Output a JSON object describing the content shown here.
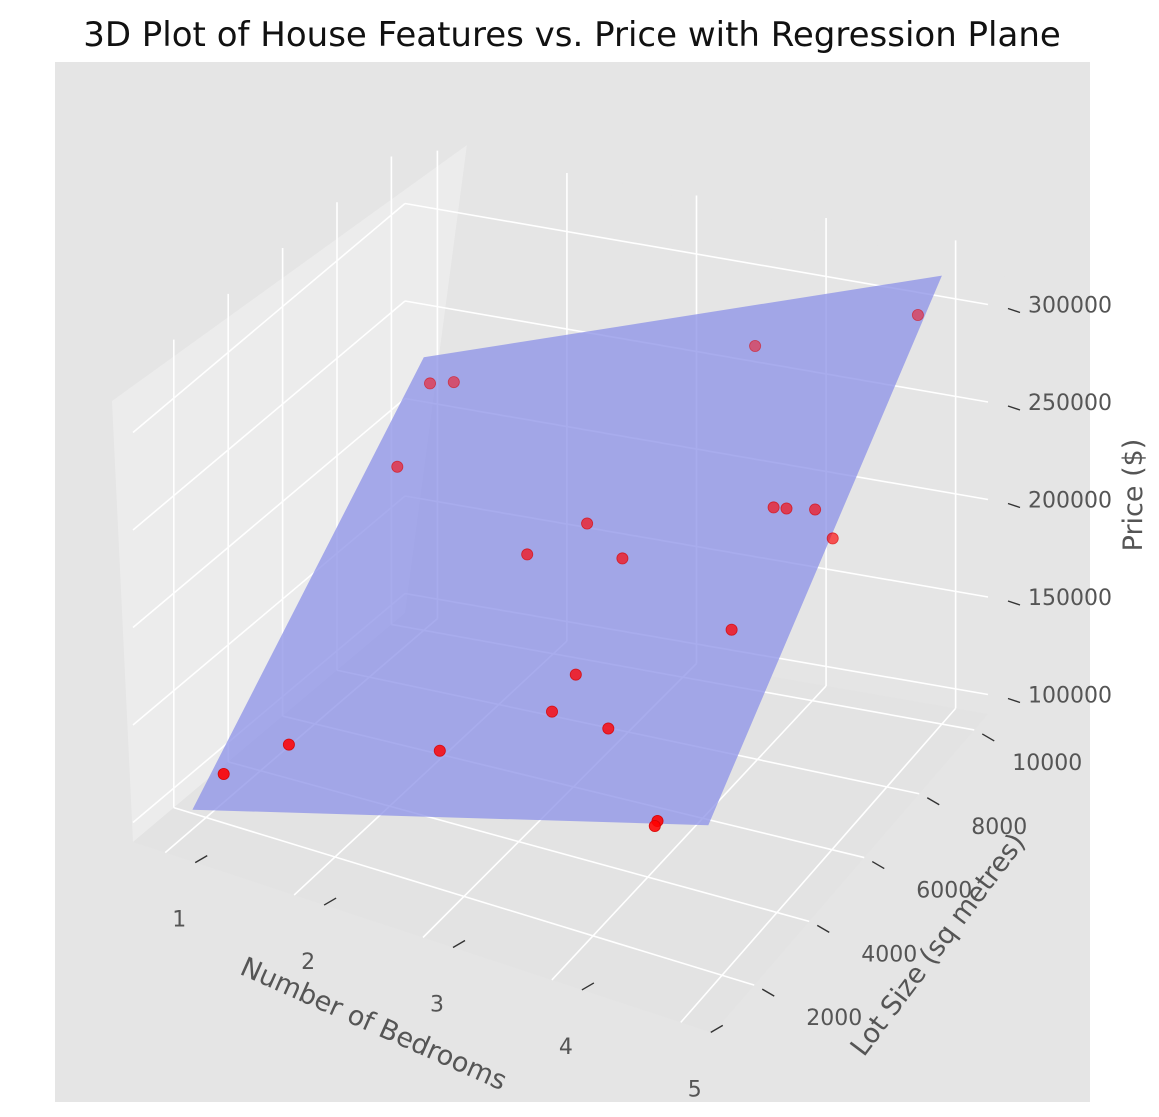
{
  "chart_data": {
    "type": "scatter",
    "title": "3D Plot of House Features vs. Price with Regression Plane",
    "xlabel": "Number of Bedrooms",
    "ylabel": "Lot Size (sq metres)",
    "zlabel": "Price ($)",
    "x_ticks": [
      "1",
      "2",
      "3",
      "4",
      "5"
    ],
    "y_ticks": [
      "2000",
      "4000",
      "6000",
      "8000",
      "10000"
    ],
    "z_ticks": [
      "100000",
      "150000",
      "200000",
      "250000",
      "300000"
    ],
    "xlim": [
      0.75,
      5.25
    ],
    "ylim": [
      500,
      10500
    ],
    "zlim": [
      90000,
      330000
    ],
    "grid": true,
    "background_color": "#e5e5e5",
    "point_color": "#ff0000",
    "plane_color": "#8f95e8",
    "regression_plane": {
      "corners": [
        {
          "bedrooms": 1,
          "lot_size": 1500,
          "price": 100000
        },
        {
          "bedrooms": 5,
          "lot_size": 1500,
          "price": 175000
        },
        {
          "bedrooms": 5,
          "lot_size": 10000,
          "price": 320000
        },
        {
          "bedrooms": 1,
          "lot_size": 10000,
          "price": 230000
        }
      ]
    },
    "points": [
      {
        "bedrooms": 1.2,
        "lot_size": 1700,
        "price": 120000
      },
      {
        "bedrooms": 1.6,
        "lot_size": 2200,
        "price": 137000
      },
      {
        "bedrooms": 1.3,
        "lot_size": 7600,
        "price": 207000
      },
      {
        "bedrooms": 1.3,
        "lot_size": 8800,
        "price": 235000
      },
      {
        "bedrooms": 1.4,
        "lot_size": 9200,
        "price": 232000
      },
      {
        "bedrooms": 2.6,
        "lot_size": 3000,
        "price": 143000
      },
      {
        "bedrooms": 3.3,
        "lot_size": 3800,
        "price": 165000
      },
      {
        "bedrooms": 3.4,
        "lot_size": 4200,
        "price": 180000
      },
      {
        "bedrooms": 3.8,
        "lot_size": 3500,
        "price": 170000
      },
      {
        "bedrooms": 4.5,
        "lot_size": 1900,
        "price": 158000
      },
      {
        "bedrooms": 4.5,
        "lot_size": 2000,
        "price": 159000
      },
      {
        "bedrooms": 2.6,
        "lot_size": 6200,
        "price": 200000
      },
      {
        "bedrooms": 3.0,
        "lot_size": 6500,
        "price": 218000
      },
      {
        "bedrooms": 3.4,
        "lot_size": 5900,
        "price": 215000
      },
      {
        "bedrooms": 4.5,
        "lot_size": 4700,
        "price": 215000
      },
      {
        "bedrooms": 4.4,
        "lot_size": 6700,
        "price": 245000
      },
      {
        "bedrooms": 4.5,
        "lot_size": 6700,
        "price": 246000
      },
      {
        "bedrooms": 4.7,
        "lot_size": 6800,
        "price": 247000
      },
      {
        "bedrooms": 4.9,
        "lot_size": 6500,
        "price": 240000
      },
      {
        "bedrooms": 3.6,
        "lot_size": 9800,
        "price": 270000
      },
      {
        "bedrooms": 4.9,
        "lot_size": 9600,
        "price": 305000
      }
    ]
  }
}
